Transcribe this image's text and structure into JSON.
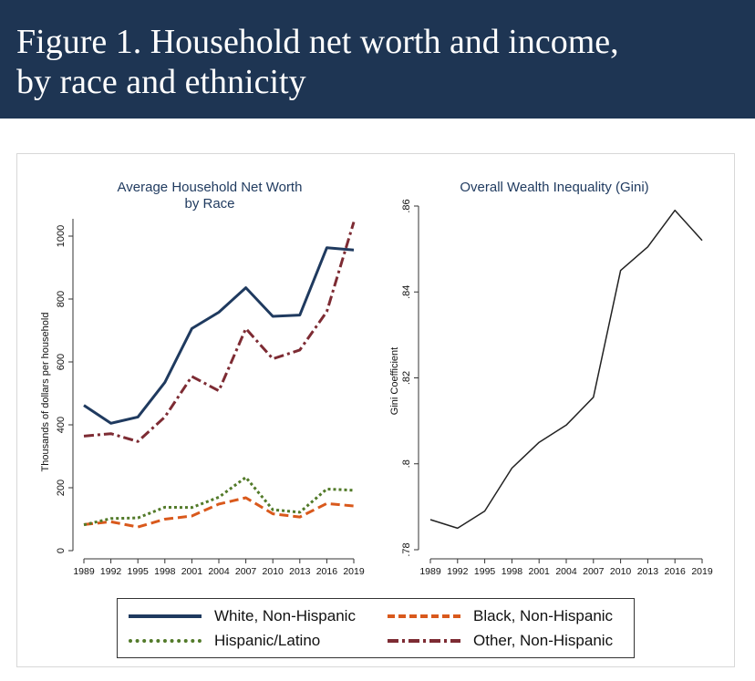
{
  "header": {
    "title_line1": "Figure 1. Household net worth and income,",
    "title_line2": "by race and ethnicity"
  },
  "colors": {
    "banner": "#1e3553",
    "white": "#1f3a5f",
    "black": "#d9591c",
    "hispanic": "#527a29",
    "other": "#7d2b33",
    "gini": "#222222"
  },
  "chart_data": [
    {
      "type": "line",
      "title": "Average Household Net Worth",
      "subtitle": "by Race",
      "xlabel": "",
      "ylabel": "Thousands of dollars per household",
      "x": [
        1989,
        1992,
        1995,
        1998,
        2001,
        2004,
        2007,
        2010,
        2013,
        2016,
        2019
      ],
      "xticks": [
        "1989",
        "1992",
        "1995",
        "1998",
        "2001",
        "2004",
        "2007",
        "2010",
        "2013",
        "2016",
        "2019"
      ],
      "yticks": [
        0,
        200,
        400,
        600,
        800,
        1000
      ],
      "ytick_labels": [
        "0",
        "200",
        "400",
        "600",
        "800",
        "1000"
      ],
      "ylim": [
        0,
        1050
      ],
      "grid": false,
      "series": [
        {
          "key": "white",
          "name": "White, Non-Hispanic",
          "style": "solid",
          "values": [
            462,
            405,
            425,
            535,
            706,
            758,
            836,
            745,
            749,
            963,
            956
          ]
        },
        {
          "key": "black",
          "name": "Black, Non-Hispanic",
          "style": "dashed",
          "values": [
            83,
            92,
            75,
            100,
            110,
            148,
            168,
            117,
            107,
            150,
            142
          ]
        },
        {
          "key": "hispanic",
          "name": "Hispanic/Latino",
          "style": "dotted",
          "values": [
            82,
            102,
            104,
            138,
            137,
            170,
            233,
            130,
            122,
            196,
            192
          ]
        },
        {
          "key": "other",
          "name": "Other, Non-Hispanic",
          "style": "dashdot",
          "values": [
            364,
            372,
            347,
            425,
            554,
            508,
            706,
            610,
            638,
            760,
            1045
          ]
        }
      ]
    },
    {
      "type": "line",
      "title": "Overall Wealth Inequality (Gini)",
      "xlabel": "",
      "ylabel": "Gini Coefficient",
      "x": [
        1989,
        1992,
        1995,
        1998,
        2001,
        2004,
        2007,
        2010,
        2013,
        2016,
        2019
      ],
      "xticks": [
        "1989",
        "1992",
        "1995",
        "1998",
        "2001",
        "2004",
        "2007",
        "2010",
        "2013",
        "2016",
        "2019"
      ],
      "yticks": [
        0.78,
        0.8,
        0.82,
        0.84,
        0.86
      ],
      "ytick_labels": [
        ".78",
        ".8",
        ".82",
        ".84",
        ".86"
      ],
      "ylim": [
        0.78,
        0.86
      ],
      "grid": false,
      "series": [
        {
          "key": "gini",
          "name": "Gini",
          "style": "solid",
          "values": [
            0.787,
            0.785,
            0.789,
            0.799,
            0.805,
            0.809,
            0.8155,
            0.845,
            0.8505,
            0.859,
            0.852
          ]
        }
      ]
    }
  ],
  "legend": {
    "position": "bottom-center",
    "items": [
      {
        "key": "white",
        "label": "White, Non-Hispanic"
      },
      {
        "key": "black",
        "label": "Black, Non-Hispanic"
      },
      {
        "key": "hispanic",
        "label": "Hispanic/Latino"
      },
      {
        "key": "other",
        "label": "Other, Non-Hispanic"
      }
    ]
  }
}
